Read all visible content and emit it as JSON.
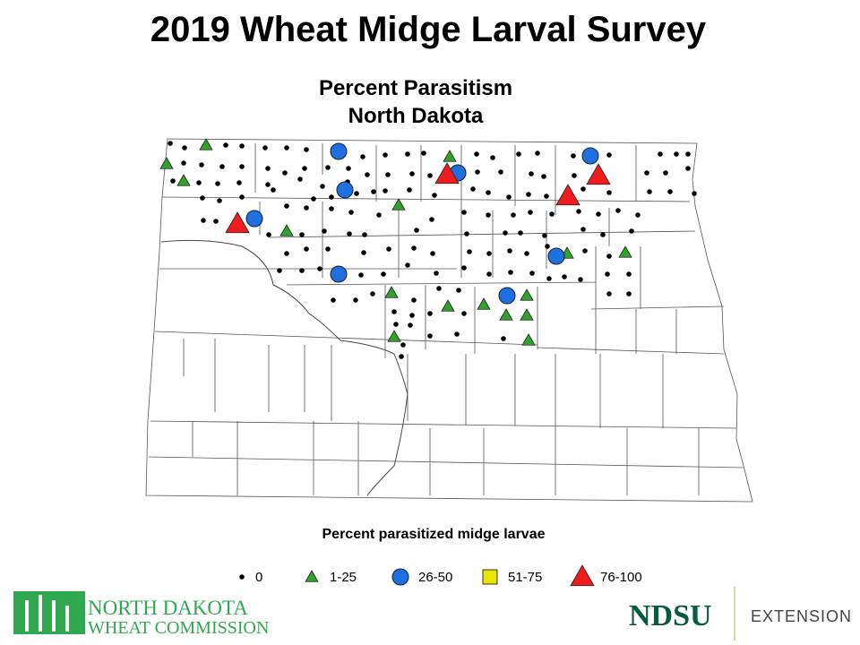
{
  "title": "2019 Wheat Midge Larval Survey",
  "subtitle": [
    "Percent Parasitism",
    "North Dakota"
  ],
  "legend": {
    "title": "Percent parasitized midge larvae",
    "items": [
      {
        "label": "0",
        "shape": "dot",
        "color": "#000000"
      },
      {
        "label": "1-25",
        "shape": "triangle",
        "color": "#33a02c"
      },
      {
        "label": "26-50",
        "shape": "circle",
        "color": "#1f6fe0"
      },
      {
        "label": "51-75",
        "shape": "square",
        "color": "#e6e600"
      },
      {
        "label": "76-100",
        "shape": "triangle",
        "color": "#ee1c1c"
      }
    ]
  },
  "logos": {
    "left": [
      "NORTH DAKOTA",
      "WHEAT COMMISSION"
    ],
    "right": [
      "NDSU",
      "EXTENSION"
    ]
  }
}
